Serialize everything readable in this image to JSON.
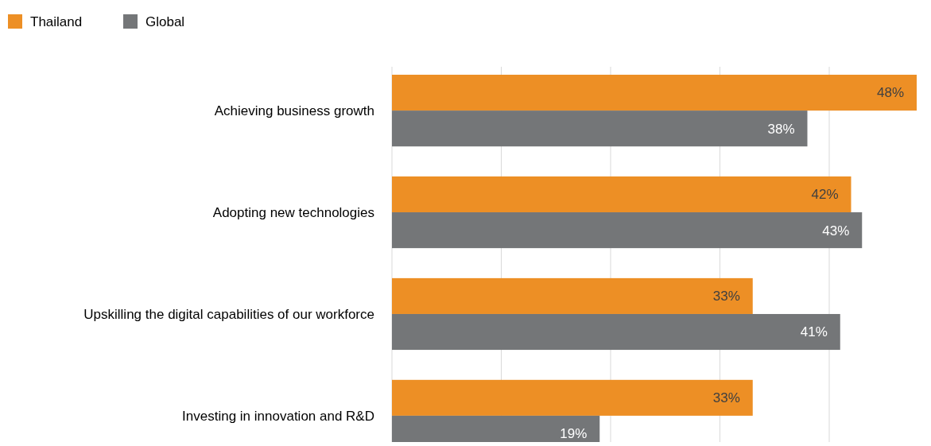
{
  "chart_data": {
    "type": "bar",
    "orientation": "horizontal",
    "categories": [
      "Achieving business growth",
      "Adopting new technologies",
      "Upskilling the digital capabilities of our workforce",
      "Investing in innovation and R&D"
    ],
    "series": [
      {
        "name": "Thailand",
        "color": "#ed8f25",
        "values": [
          48,
          42,
          33,
          33
        ],
        "value_labels": [
          "48%",
          "42%",
          "33%",
          "33%"
        ]
      },
      {
        "name": "Global",
        "color": "#747678",
        "values": [
          38,
          43,
          41,
          19
        ],
        "value_labels": [
          "38%",
          "43%",
          "41%",
          "19%"
        ]
      }
    ],
    "tick_labels": "y",
    "grid": "x",
    "legend": "top left"
  }
}
